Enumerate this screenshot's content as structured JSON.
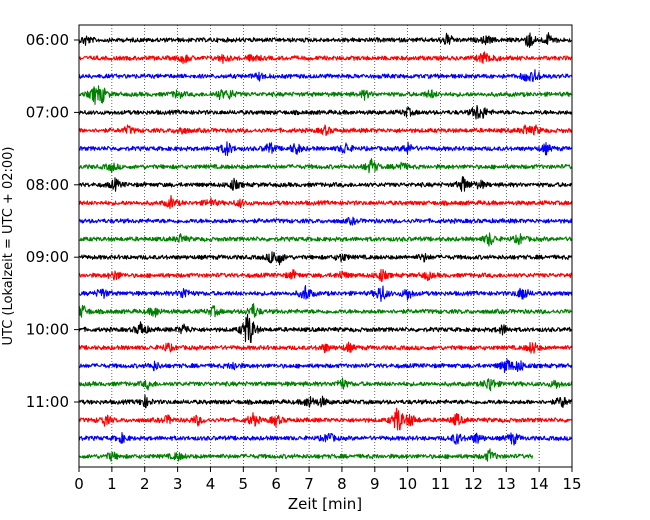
{
  "chart_data": {
    "type": "line",
    "title": "",
    "xlabel": "Zeit  [min]",
    "ylabel": "UTC (Lokalzeit = UTC + 02:00)",
    "xlim": [
      0,
      15
    ],
    "x_ticks": [
      "0",
      "1",
      "2",
      "3",
      "4",
      "5",
      "6",
      "7",
      "8",
      "9",
      "10",
      "11",
      "12",
      "13",
      "14",
      "15"
    ],
    "y_ticks": [
      "06:00",
      "07:00",
      "08:00",
      "09:00",
      "10:00",
      "11:00"
    ],
    "grid": "vertical dotted",
    "trace_interval_min": 15,
    "trace_colors": [
      "#000000",
      "#ff0000",
      "#0000ff",
      "#008000"
    ],
    "traces": [
      {
        "start": "06:00",
        "end_min": 15,
        "events": [
          [
            0.2,
            0.7
          ],
          [
            11.2,
            0.9
          ],
          [
            12.4,
            0.6
          ],
          [
            13.7,
            1.2
          ],
          [
            14.3,
            0.9
          ]
        ]
      },
      {
        "start": "06:15",
        "end_min": 15,
        "events": [
          [
            3.2,
            0.7
          ],
          [
            4.4,
            0.6
          ],
          [
            5.3,
            0.6
          ],
          [
            12.3,
            0.9
          ],
          [
            12.6,
            0.5
          ]
        ]
      },
      {
        "start": "06:30",
        "end_min": 15,
        "events": [
          [
            5.5,
            0.5
          ],
          [
            13.9,
            0.9
          ],
          [
            13.6,
            0.6
          ]
        ]
      },
      {
        "start": "06:45",
        "end_min": 15,
        "events": [
          [
            0.5,
            1.3
          ],
          [
            0.7,
            1.0
          ],
          [
            3.0,
            0.6
          ],
          [
            4.3,
            0.6
          ],
          [
            4.6,
            0.6
          ],
          [
            8.7,
            0.6
          ],
          [
            10.7,
            0.6
          ]
        ]
      },
      {
        "start": "07:00",
        "end_min": 15,
        "events": [
          [
            10.0,
            0.6
          ],
          [
            12.1,
            1.0
          ],
          [
            12.3,
            0.6
          ]
        ]
      },
      {
        "start": "07:15",
        "end_min": 15,
        "events": [
          [
            1.5,
            0.6
          ],
          [
            3.1,
            0.6
          ],
          [
            7.5,
            0.6
          ],
          [
            13.6,
            0.7
          ],
          [
            13.9,
            0.5
          ]
        ]
      },
      {
        "start": "07:30",
        "end_min": 15,
        "events": [
          [
            4.5,
            1.1
          ],
          [
            5.8,
            0.9
          ],
          [
            6.6,
            0.9
          ],
          [
            8.1,
            0.9
          ],
          [
            10.0,
            0.8
          ],
          [
            14.2,
            0.7
          ]
        ]
      },
      {
        "start": "07:45",
        "end_min": 15,
        "events": [
          [
            1.0,
            0.6
          ],
          [
            8.9,
            1.2
          ],
          [
            9.8,
            0.6
          ]
        ]
      },
      {
        "start": "08:00",
        "end_min": 15,
        "events": [
          [
            1.1,
            0.8
          ],
          [
            4.7,
            0.8
          ],
          [
            11.7,
            1.2
          ],
          [
            12.2,
            0.6
          ]
        ]
      },
      {
        "start": "08:15",
        "end_min": 15,
        "events": [
          [
            2.8,
            0.8
          ],
          [
            4.0,
            0.6
          ],
          [
            4.9,
            0.5
          ]
        ]
      },
      {
        "start": "08:30",
        "end_min": 15,
        "events": [
          [
            8.3,
            0.4
          ]
        ]
      },
      {
        "start": "08:45",
        "end_min": 15,
        "events": [
          [
            3.1,
            0.6
          ],
          [
            12.5,
            1.0
          ],
          [
            13.4,
            0.7
          ]
        ]
      },
      {
        "start": "09:00",
        "end_min": 15,
        "events": [
          [
            5.9,
            1.0
          ],
          [
            6.1,
            0.7
          ],
          [
            8.0,
            0.6
          ],
          [
            10.5,
            0.5
          ]
        ]
      },
      {
        "start": "09:15",
        "end_min": 15,
        "events": [
          [
            1.1,
            0.7
          ],
          [
            6.5,
            0.6
          ],
          [
            8.0,
            0.6
          ],
          [
            9.2,
            0.9
          ],
          [
            10.6,
            0.6
          ]
        ]
      },
      {
        "start": "09:30",
        "end_min": 15,
        "events": [
          [
            0.7,
            0.8
          ],
          [
            3.2,
            0.9
          ],
          [
            6.9,
            1.2
          ],
          [
            9.2,
            1.4
          ],
          [
            10.0,
            0.9
          ],
          [
            13.5,
            1.1
          ]
        ]
      },
      {
        "start": "09:45",
        "end_min": 15,
        "events": [
          [
            0.1,
            1.0
          ],
          [
            2.3,
            0.8
          ],
          [
            4.1,
            0.7
          ],
          [
            5.3,
            1.1
          ]
        ]
      },
      {
        "start": "10:00",
        "end_min": 15,
        "events": [
          [
            1.9,
            1.2
          ],
          [
            3.2,
            0.8
          ],
          [
            5.2,
            1.8
          ],
          [
            5.1,
            1.4
          ],
          [
            12.9,
            0.7
          ]
        ]
      },
      {
        "start": "10:15",
        "end_min": 15,
        "events": [
          [
            2.7,
            0.6
          ],
          [
            7.5,
            0.6
          ],
          [
            8.2,
            0.6
          ],
          [
            13.8,
            1.0
          ]
        ]
      },
      {
        "start": "10:30",
        "end_min": 15,
        "events": [
          [
            2.3,
            0.6
          ],
          [
            4.7,
            0.6
          ],
          [
            13.0,
            1.2
          ],
          [
            13.4,
            0.9
          ]
        ]
      },
      {
        "start": "10:45",
        "end_min": 15,
        "events": [
          [
            2.1,
            0.6
          ],
          [
            8.0,
            0.8
          ],
          [
            12.5,
            1.2
          ],
          [
            14.5,
            0.6
          ]
        ]
      },
      {
        "start": "11:00",
        "end_min": 15,
        "events": [
          [
            2.0,
            0.8
          ],
          [
            7.0,
            0.9
          ],
          [
            7.4,
            0.6
          ],
          [
            14.7,
            0.9
          ]
        ]
      },
      {
        "start": "11:15",
        "end_min": 15,
        "events": [
          [
            0.8,
            0.8
          ],
          [
            2.7,
            0.6
          ],
          [
            3.6,
            0.7
          ],
          [
            5.3,
            1.0
          ],
          [
            6.0,
            0.8
          ],
          [
            9.7,
            2.2
          ],
          [
            10.1,
            0.9
          ],
          [
            11.5,
            0.9
          ]
        ]
      },
      {
        "start": "11:30",
        "end_min": 15,
        "events": [
          [
            1.3,
            0.6
          ],
          [
            7.6,
            0.8
          ],
          [
            11.5,
            0.9
          ],
          [
            12.1,
            0.8
          ],
          [
            13.2,
            1.0
          ]
        ]
      },
      {
        "start": "11:45",
        "end_min": 13.8,
        "events": [
          [
            1.0,
            0.6
          ],
          [
            3.0,
            0.6
          ],
          [
            12.5,
            0.9
          ]
        ]
      }
    ]
  }
}
